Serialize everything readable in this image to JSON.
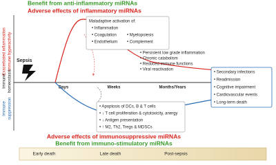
{
  "top_labels": {
    "benefit": "Benefit from anti-inflammatory miRNAs",
    "adverse": "Adverse effects of inflammatory miRNAs"
  },
  "bottom_labels": {
    "adverse": "Adverse effects of immunosuppressive miRNAs",
    "benefit": "Benefit from immuno-stimulatory miRNAs"
  },
  "axis": {
    "upper": [
      "Exacerbated inflammation",
      "Immune hyperactivity"
    ],
    "middle": [
      "Immune",
      "homeostasis"
    ],
    "lower": [
      "Immune",
      "suppression"
    ],
    "time": [
      "Days",
      "Weeks",
      "Months/Years"
    ]
  },
  "trigger": "Sepsis",
  "early_box": {
    "title": "Maladaptive activation of:",
    "items": [
      "• Inflammation",
      "• Coagulation",
      "• Myelopoiesis",
      "• Endothelium",
      "• Complement"
    ]
  },
  "late_list": [
    "• Persistent low grade inflammation",
    "• Chronic catabolism",
    "• Reduced immune functions",
    "• Viral reactivation"
  ],
  "outcome_box": [
    "• Secondary infections",
    "• Readmission",
    "• Cognitive impairment",
    "• Cardiovascular events",
    "• Long-term death"
  ],
  "suppression_box": [
    "• Apoptosis of DCs, B & T cells",
    "• ↓ T cell proliferation & cytotoxicity, anergy",
    "• ↓ Antigen presentation",
    "• ↑ M2, Th2, Tregs & MDSCs"
  ],
  "phases": [
    "Early death",
    "Late death",
    "Post-sepsis"
  ]
}
